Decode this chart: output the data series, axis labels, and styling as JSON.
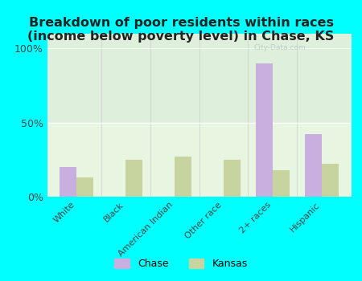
{
  "categories": [
    "White",
    "Black",
    "American Indian",
    "Other race",
    "2+ races",
    "Hispanic"
  ],
  "chase_values": [
    20,
    0,
    0,
    0,
    90,
    42
  ],
  "kansas_values": [
    13,
    25,
    27,
    25,
    18,
    22
  ],
  "chase_color": "#c9aee0",
  "kansas_color": "#c8d4a0",
  "background_color": "#00ffff",
  "title": "Breakdown of poor residents within races\n(income below poverty level) in Chase, KS",
  "title_fontsize": 11.5,
  "ylabel_ticks": [
    "0%",
    "50%",
    "100%"
  ],
  "ytick_values": [
    0,
    50,
    100
  ],
  "ylim": [
    0,
    110
  ],
  "watermark": "City-Data.com",
  "legend_chase": "Chase",
  "legend_kansas": "Kansas",
  "bar_width": 0.35
}
